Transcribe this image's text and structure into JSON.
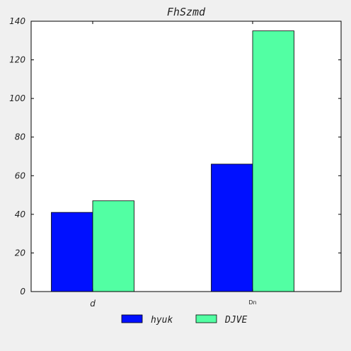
{
  "chart_data": {
    "type": "bar",
    "title": "FhSzmd",
    "categories": [
      "d",
      "Dn"
    ],
    "series": [
      {
        "name": "hyuk",
        "values": [
          41,
          66
        ],
        "color": "#0010ff"
      },
      {
        "name": "DJVE",
        "values": [
          47,
          135
        ],
        "color": "#52ffa3"
      }
    ],
    "ylim": [
      0,
      140
    ],
    "yticks": [
      0,
      20,
      40,
      60,
      80,
      100,
      120,
      140
    ],
    "xlabel": "",
    "ylabel": "",
    "grid": false,
    "legend_position": "bottom-center"
  }
}
